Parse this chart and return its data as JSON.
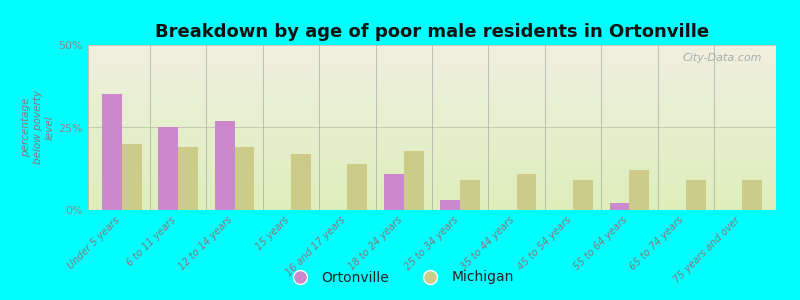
{
  "title": "Breakdown by age of poor male residents in Ortonville",
  "ylabel": "percentage\nbelow poverty\nlevel",
  "background_color": "#00ffff",
  "plot_bg_top": "#f0f0e0",
  "plot_bg_bottom": "#ddeebb",
  "categories": [
    "Under 5 years",
    "6 to 11 years",
    "12 to 14 years",
    "15 years",
    "16 and 17 years",
    "18 to 24 years",
    "25 to 34 years",
    "35 to 44 years",
    "45 to 54 years",
    "55 to 64 years",
    "65 to 74 years",
    "75 years and over"
  ],
  "ortonville": [
    35,
    25,
    27,
    0,
    0,
    11,
    3,
    0,
    0,
    2,
    0,
    0
  ],
  "michigan": [
    20,
    19,
    19,
    17,
    14,
    18,
    9,
    11,
    9,
    12,
    9,
    9
  ],
  "ortonville_color": "#cc88cc",
  "michigan_color": "#cccc88",
  "ylim": [
    0,
    50
  ],
  "yticks": [
    0,
    25,
    50
  ],
  "ytick_labels": [
    "0%",
    "25%",
    "50%"
  ],
  "bar_width": 0.35,
  "watermark": "City-Data.com",
  "legend_ortonville": "Ortonville",
  "legend_michigan": "Michigan",
  "label_color": "#887777",
  "tick_color": "#888888"
}
